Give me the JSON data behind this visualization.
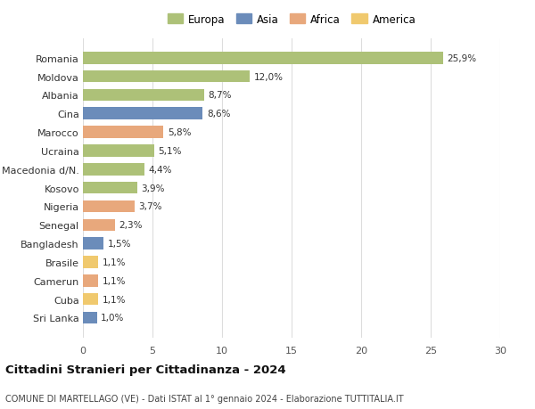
{
  "countries": [
    "Romania",
    "Moldova",
    "Albania",
    "Cina",
    "Marocco",
    "Ucraina",
    "Macedonia d/N.",
    "Kosovo",
    "Nigeria",
    "Senegal",
    "Bangladesh",
    "Brasile",
    "Camerun",
    "Cuba",
    "Sri Lanka"
  ],
  "values": [
    25.9,
    12.0,
    8.7,
    8.6,
    5.8,
    5.1,
    4.4,
    3.9,
    3.7,
    2.3,
    1.5,
    1.1,
    1.1,
    1.1,
    1.0
  ],
  "labels": [
    "25,9%",
    "12,0%",
    "8,7%",
    "8,6%",
    "5,8%",
    "5,1%",
    "4,4%",
    "3,9%",
    "3,7%",
    "2,3%",
    "1,5%",
    "1,1%",
    "1,1%",
    "1,1%",
    "1,0%"
  ],
  "colors": [
    "#adc178",
    "#adc178",
    "#adc178",
    "#6b8cba",
    "#e8a87c",
    "#adc178",
    "#adc178",
    "#adc178",
    "#e8a87c",
    "#e8a87c",
    "#6b8cba",
    "#f0c96e",
    "#e8a87c",
    "#f0c96e",
    "#6b8cba"
  ],
  "legend_labels": [
    "Europa",
    "Asia",
    "Africa",
    "America"
  ],
  "legend_colors": [
    "#adc178",
    "#6b8cba",
    "#e8a87c",
    "#f0c96e"
  ],
  "title": "Cittadini Stranieri per Cittadinanza - 2024",
  "subtitle": "COMUNE DI MARTELLAGO (VE) - Dati ISTAT al 1° gennaio 2024 - Elaborazione TUTTITALIA.IT",
  "xlim": [
    0,
    30
  ],
  "xticks": [
    0,
    5,
    10,
    15,
    20,
    25,
    30
  ],
  "background_color": "#ffffff",
  "grid_color": "#dddddd"
}
